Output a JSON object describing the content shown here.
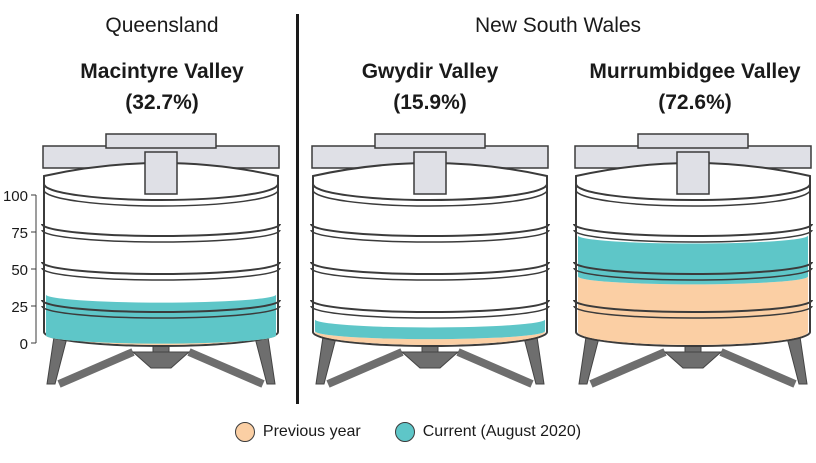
{
  "regions": {
    "qld": "Queensland",
    "nsw": "New South Wales"
  },
  "chart_data": {
    "type": "tank-fill",
    "yaxis": {
      "ticks": [
        "100",
        "75",
        "50",
        "25",
        "0"
      ],
      "ylim": [
        0,
        100
      ]
    },
    "tanks": [
      {
        "name": "Macintyre Valley",
        "pct_label": "(32.7%)",
        "current": 32.7,
        "previous": 5
      },
      {
        "name": "Gwydir Valley",
        "pct_label": "(15.9%)",
        "current": 15.9,
        "previous": 8
      },
      {
        "name": "Murrumbidgee Valley",
        "pct_label": "(72.6%)",
        "current": 72.6,
        "previous": 45
      }
    ],
    "legend": [
      {
        "label": "Previous year",
        "color": "#fbcfa4"
      },
      {
        "label": "Current (August 2020)",
        "color": "#5ec6c8"
      }
    ]
  }
}
